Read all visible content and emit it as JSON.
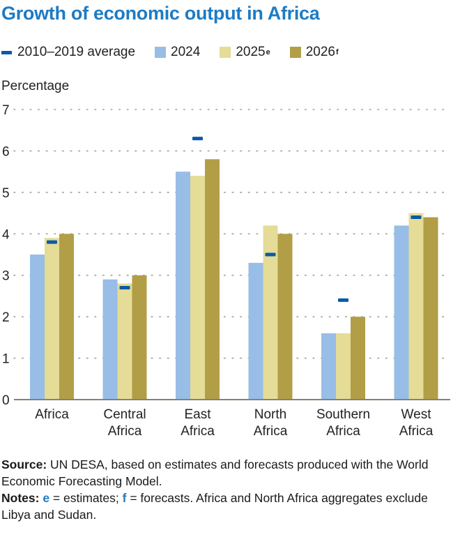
{
  "chart_data": {
    "type": "bar",
    "title": "Growth of economic output in Africa",
    "ylabel": "Percentage",
    "xlabel": "",
    "ylim": [
      0,
      7
    ],
    "yticks": [
      0,
      1,
      2,
      3,
      4,
      5,
      6,
      7
    ],
    "grid": true,
    "legend_position": "top-left",
    "categories": [
      [
        "Africa"
      ],
      [
        "Central",
        "Africa"
      ],
      [
        "East",
        "Africa"
      ],
      [
        "North",
        "Africa"
      ],
      [
        "Southern",
        "Africa"
      ],
      [
        "West",
        "Africa"
      ]
    ],
    "series": [
      {
        "name": "2024",
        "sup": "",
        "kind": "bar",
        "color": "#98bde6",
        "values": [
          3.5,
          2.9,
          5.5,
          3.3,
          1.6,
          4.2
        ]
      },
      {
        "name": "2025",
        "sup": "e",
        "kind": "bar",
        "color": "#e4dc97",
        "values": [
          3.9,
          2.8,
          5.4,
          4.2,
          1.6,
          4.5
        ]
      },
      {
        "name": "2026",
        "sup": "f",
        "kind": "bar",
        "color": "#b19e47",
        "values": [
          4.0,
          3.0,
          5.8,
          4.0,
          2.0,
          4.4
        ]
      },
      {
        "name": "2010–2019 average",
        "sup": "",
        "kind": "marker",
        "color": "#0a5aa6",
        "values": [
          3.8,
          2.7,
          6.3,
          3.5,
          2.4,
          4.4
        ]
      }
    ]
  },
  "notes": {
    "source_label": "Source:",
    "source_text": " UN DESA, based on estimates and forecasts produced with the World Economic Forecasting Model.",
    "notes_label": "Notes:",
    "notes_e": "e",
    "notes_e_text": " = estimates; ",
    "notes_f": "f",
    "notes_f_text": " = forecasts. Africa and North Africa aggregates exclude Libya and Sudan."
  }
}
